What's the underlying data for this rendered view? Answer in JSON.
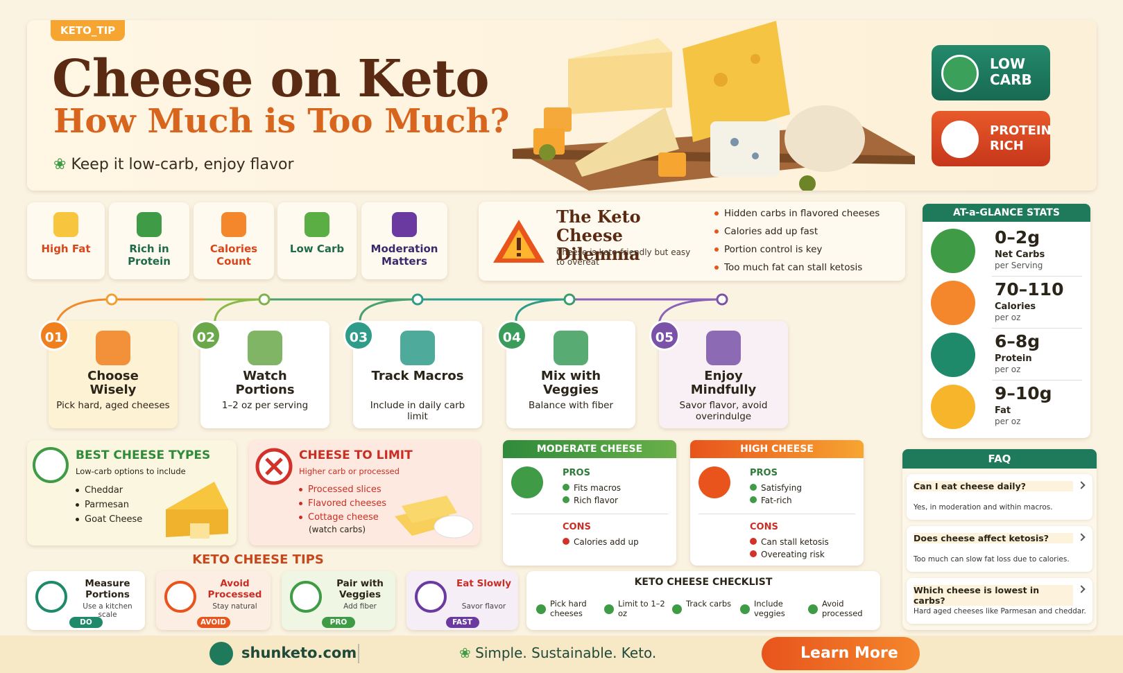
{
  "header": {
    "tag": "KETO_TIP",
    "title": "Cheese on Keto",
    "subtitle": "How Much is Too Much?",
    "tagline": "Keep it low-carb, enjoy flavor"
  },
  "badges": [
    "LOW CARB",
    "PROTEIN RICH"
  ],
  "features": [
    "High Fat",
    "Rich in Protein",
    "Calories Count",
    "Low Carb",
    "Moderation Matters"
  ],
  "dilemma": {
    "title": "The Keto Cheese Dilemma",
    "text": "Cheese is keto-friendly but easy to overeat",
    "bullets": [
      "Hidden carbs in flavored cheeses",
      "Calories add up fast",
      "Portion control is key",
      "Too much fat can stall ketosis"
    ]
  },
  "stats": {
    "title": "AT-a-GLANCE STATS",
    "items": [
      {
        "value": "0–2g",
        "label": "Net Carbs",
        "unit": "per Serving"
      },
      {
        "value": "70–110",
        "label": "Calories",
        "unit": "per oz"
      },
      {
        "value": "6–8g",
        "label": "Protein",
        "unit": "per oz"
      },
      {
        "value": "9–10g",
        "label": "Fat",
        "unit": "per oz"
      }
    ]
  },
  "steps": [
    {
      "num": "01",
      "title": "Choose Wisely",
      "text": "Pick hard, aged cheeses"
    },
    {
      "num": "02",
      "title": "Watch Portions",
      "text": "1–2 oz per serving"
    },
    {
      "num": "03",
      "title": "Track Macros",
      "text": "Include in daily carb limit"
    },
    {
      "num": "04",
      "title": "Mix with Veggies",
      "text": "Balance with fiber"
    },
    {
      "num": "05",
      "title": "Enjoy Mindfully",
      "text": "Savor flavor, avoid overindulge"
    }
  ],
  "best": {
    "title": "BEST CHEESE TYPES",
    "sub": "Low-carb options to include",
    "items": [
      "Cheddar",
      "Parmesan",
      "Goat Cheese"
    ]
  },
  "limit": {
    "title": "CHEESE TO LIMIT",
    "sub": "Higher carb or processed",
    "items": [
      "Processed slices",
      "Flavored cheeses",
      "Cottage cheese"
    ],
    "note": "(watch carbs)"
  },
  "moderate": {
    "title": "MODERATE CHEESE",
    "pros_label": "PROS",
    "pros": [
      "Fits macros",
      "Rich flavor"
    ],
    "cons_label": "CONS",
    "cons": [
      "Calories add up"
    ]
  },
  "high": {
    "title": "HIGH CHEESE",
    "pros_label": "PROS",
    "pros": [
      "Satisfying",
      "Fat-rich"
    ],
    "cons_label": "CONS",
    "cons": [
      "Can stall ketosis",
      "Overeating risk"
    ]
  },
  "tips": {
    "title": "KETO CHEESE TIPS",
    "items": [
      {
        "title": "Measure Portions",
        "text": "Use a kitchen scale",
        "tag": "DO"
      },
      {
        "title": "Avoid Processed",
        "text": "Stay natural",
        "tag": "AVOID"
      },
      {
        "title": "Pair with Veggies",
        "text": "Add fiber",
        "tag": "PRO"
      },
      {
        "title": "Eat Slowly",
        "text": "Savor flavor",
        "tag": "FAST"
      }
    ]
  },
  "checklist": {
    "title": "KETO CHEESE CHECKLIST",
    "items": [
      "Pick hard cheeses",
      "Limit to 1–2 oz",
      "Track carbs",
      "Include veggies",
      "Avoid processed"
    ]
  },
  "faq": {
    "title": "FAQ",
    "items": [
      {
        "q": "Can I eat cheese daily?",
        "a": "Yes, in moderation and within macros."
      },
      {
        "q": "Does cheese affect ketosis?",
        "a": "Too much can slow fat loss due to calories."
      },
      {
        "q": "Which cheese is lowest in carbs?",
        "a": "Hard aged cheeses like Parmesan and cheddar."
      }
    ]
  },
  "footer": {
    "site": "shunketo.com",
    "slogan": "Simple. Sustainable. Keto.",
    "button": "Learn More"
  }
}
